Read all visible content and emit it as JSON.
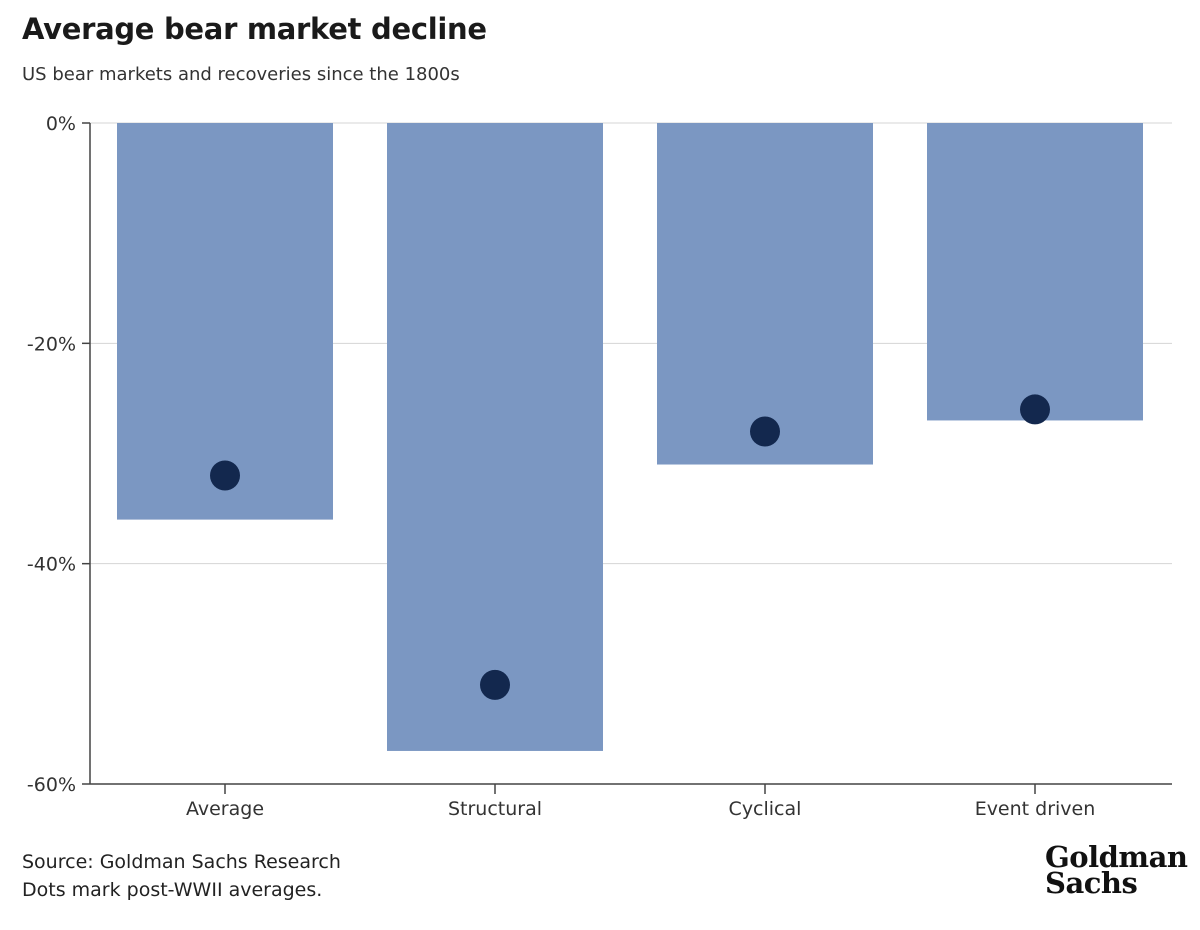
{
  "header": {
    "title": "Average bear market decline",
    "subtitle": "US bear markets and recoveries since the 1800s"
  },
  "footer": {
    "source": "Source: Goldman Sachs Research",
    "note": "Dots mark post-WWII averages.",
    "logo_line1": "Goldman",
    "logo_line2": "Sachs"
  },
  "colors": {
    "bar": "#7b97c2",
    "dot": "#13284e",
    "grid": "#d4d4d4",
    "axis": "#444444"
  },
  "chart_data": {
    "type": "bar",
    "title": "Average bear market decline",
    "subtitle": "US bear markets and recoveries since the 1800s",
    "categories": [
      "Average",
      "Structural",
      "Cyclical",
      "Event driven"
    ],
    "series": [
      {
        "values": [
          -36,
          -57,
          -31,
          -27
        ]
      },
      {
        "name": "post-WWII averages",
        "values": [
          -32,
          -51,
          -28,
          -26
        ]
      }
    ],
    "ylim": [
      -60,
      0
    ],
    "yticks": [
      0,
      -20,
      -40,
      -60
    ],
    "ytick_labels": [
      "0%",
      "-20%",
      "-40%",
      "-60%"
    ],
    "xlabel": "",
    "ylabel": "",
    "grid": true
  }
}
